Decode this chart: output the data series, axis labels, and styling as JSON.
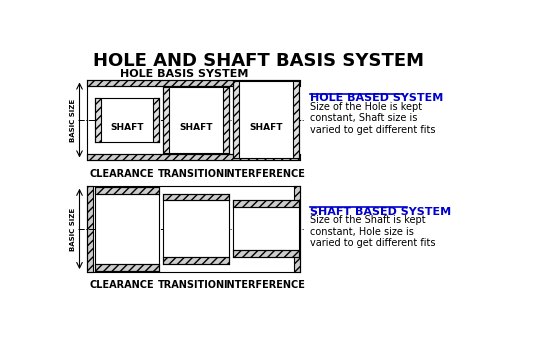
{
  "title": "HOLE AND SHAFT BASIS SYSTEM",
  "title_fontsize": 13,
  "title_fontweight": "bold",
  "bg_color": "#ffffff",
  "line_color": "#000000",
  "top_label_hole": "HOLE BASIS SYSTEM",
  "bottom_labels": [
    "CLEARANCE",
    "TRANSITION",
    "INTERFERENCE"
  ],
  "right_title_hole": "HOLE BASED SYSTEM",
  "right_text_hole": "Size of the Hole is kept\nconstant, Shaft size is\nvaried to get different fits",
  "right_title_shaft": "SHAFT BASED SYSTEM",
  "right_text_shaft": "Size of the Shaft is kept\nconstant, Hole size is\nvaried to get different fits",
  "basic_size_label": "BASIC SIZE",
  "shaft_labels": [
    "SHAFT",
    "SHAFT",
    "SHAFT"
  ]
}
